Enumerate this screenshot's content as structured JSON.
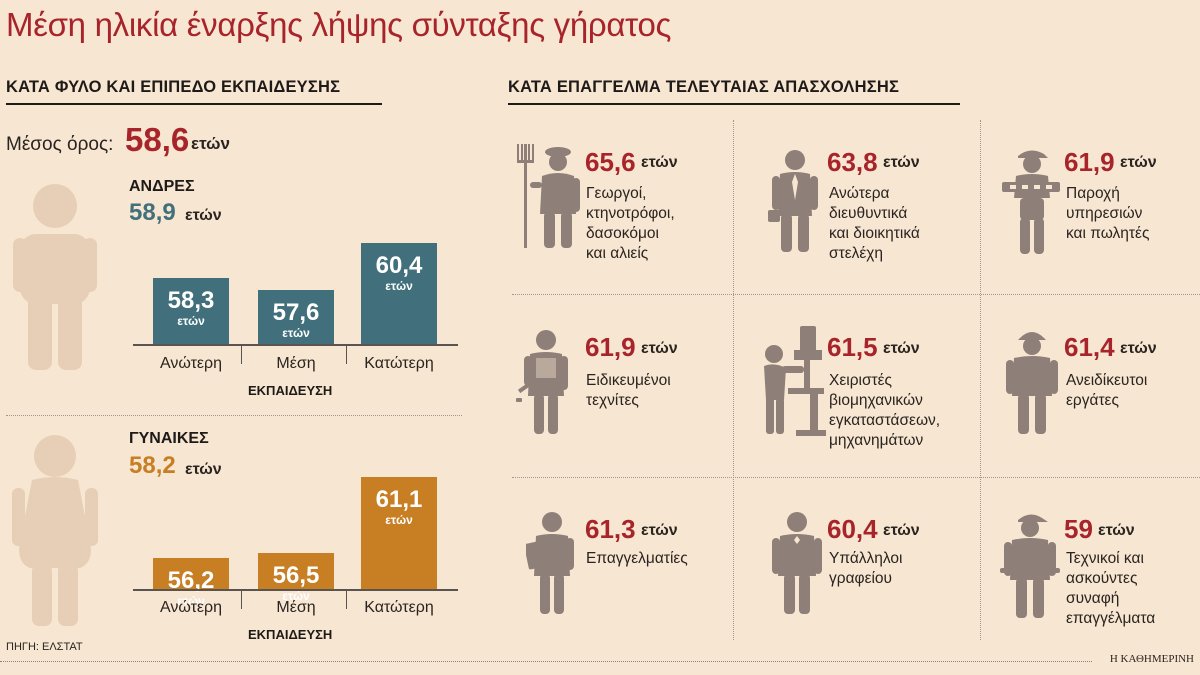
{
  "title": "Μέση ηλικία έναρξης λήψης σύνταξης γήρατος",
  "left_section": {
    "heading": "ΚΑΤΑ ΦΥΛΟ ΚΑΙ ΕΠΙΠΕΔΟ ΕΚΠΑΙΔΕΥΣΗΣ",
    "average_label": "Μέσος όρος:",
    "average_value": "58,6",
    "average_unit": "ετών"
  },
  "right_section": {
    "heading": "ΚΑΤΑ ΕΠΑΓΓΕΛΜΑ ΤΕΛΕΥΤΑΙΑΣ ΑΠΑΣΧΟΛΗΣΗΣ"
  },
  "source": "ΠΗΓΗ: ΕΛΣΤΑΤ",
  "brand": "Η ΚΑΘΗΜΕΡΙΝΗ",
  "colors": {
    "title_red": "#a8242b",
    "men_teal": "#41707c",
    "women_ochre": "#c87e22",
    "figure_beige": "#e6cfb6",
    "icon_brown": "#8e8078"
  },
  "chart_data": [
    {
      "type": "bar",
      "title": "ΑΝΔΡΕΣ",
      "group_value": "58,9",
      "unit": "ετών",
      "categories": [
        "Ανώτερη",
        "Μέση",
        "Κατώτερη"
      ],
      "values": [
        58.3,
        57.6,
        60.4
      ],
      "labels": [
        "58,3",
        "57,6",
        "60,4"
      ],
      "xlabel": "ΕΚΠΑΙΔΕΥΣΗ",
      "color": "#41707c"
    },
    {
      "type": "bar",
      "title": "ΓΥΝΑΙΚΕΣ",
      "group_value": "58,2",
      "unit": "ετών",
      "categories": [
        "Ανώτερη",
        "Μέση",
        "Κατώτερη"
      ],
      "values": [
        56.2,
        56.5,
        61.1
      ],
      "labels": [
        "56,2",
        "56,5",
        "61,1"
      ],
      "xlabel": "ΕΚΠΑΙΔΕΥΣΗ",
      "color": "#c87e22"
    },
    {
      "type": "table",
      "unit": "ετών",
      "rows": [
        {
          "value": "65,6",
          "label": "Γεωργοί,\nκτηνοτρόφοι,\nδασοκόμοι\nκαι αλιείς",
          "icon": "farmer-icon"
        },
        {
          "value": "63,8",
          "label": "Ανώτερα\nδιευθυντικά\nκαι διοικητικά\nστελέχη",
          "icon": "executive-icon"
        },
        {
          "value": "61,9",
          "label": "Παροχή\nυπηρεσιών\nκαι πωλητές",
          "icon": "waiter-icon"
        },
        {
          "value": "61,9",
          "label": "Ειδικευμένοι\nτεχνίτες",
          "icon": "craftsman-icon"
        },
        {
          "value": "61,5",
          "label": "Χειριστές\nβιομηχανικών\nεγκαταστάσεων,\nμηχανημάτων",
          "icon": "machine-operator-icon"
        },
        {
          "value": "61,4",
          "label": "Ανειδίκευτοι\nεργάτες",
          "icon": "worker-helmet-icon"
        },
        {
          "value": "61,3",
          "label": "Επαγγελματίες",
          "icon": "professional-icon"
        },
        {
          "value": "60,4",
          "label": "Υπάλληλοι\nγραφείου",
          "icon": "clerk-icon"
        },
        {
          "value": "59",
          "label": "Τεχνικοί και\nασκούντες\nσυναφή\nεπαγγέλματα",
          "icon": "technician-icon"
        }
      ]
    }
  ]
}
